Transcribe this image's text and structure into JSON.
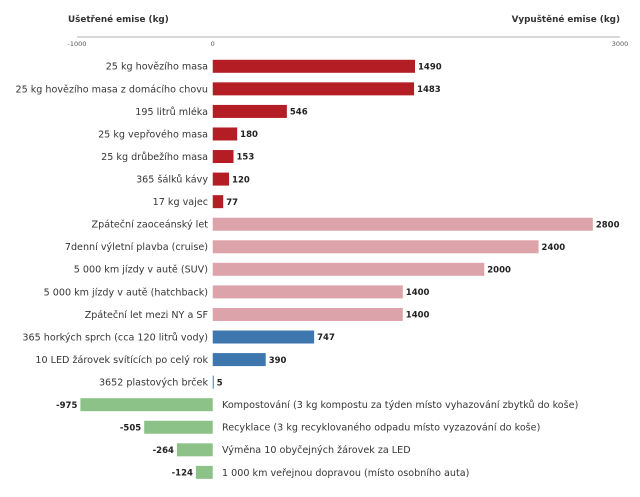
{
  "chart_data": {
    "type": "bar",
    "orientation": "horizontal",
    "xlabel_left": "Ušetřené emise (kg)",
    "xlabel_right": "Vypuštěné emise (kg)",
    "xlim": [
      -1000,
      3000
    ],
    "x_ticks": [
      -1000,
      0,
      3000
    ],
    "grid": false,
    "items": [
      {
        "label": "25 kg hovězího masa",
        "value": 1490,
        "color": "#b51d25"
      },
      {
        "label": "25 kg hovězího masa z domácího chovu",
        "value": 1483,
        "color": "#b51d25"
      },
      {
        "label": "195 litrů mléka",
        "value": 546,
        "color": "#b51d25"
      },
      {
        "label": "25 kg vepřového masa",
        "value": 180,
        "color": "#b51d25"
      },
      {
        "label": "25 kg drůbežího masa",
        "value": 153,
        "color": "#b51d25"
      },
      {
        "label": "365 šálků kávy",
        "value": 120,
        "color": "#b51d25"
      },
      {
        "label": "17 kg vajec",
        "value": 77,
        "color": "#b51d25"
      },
      {
        "label": "Zpáteční zaoceánský let",
        "value": 2800,
        "color": "#dca4aa"
      },
      {
        "label": "7denní výletní plavba (cruise)",
        "value": 2400,
        "color": "#dca4aa"
      },
      {
        "label": "5 000 km jízdy v autě (SUV)",
        "value": 2000,
        "color": "#dca4aa"
      },
      {
        "label": "5 000 km jízdy v autě (hatchback)",
        "value": 1400,
        "color": "#dca4aa"
      },
      {
        "label": "Zpáteční let mezi NY a SF",
        "value": 1400,
        "color": "#dca4aa"
      },
      {
        "label": "365 horkých sprch (cca 120 litrů vody)",
        "value": 747,
        "color": "#3d77ae"
      },
      {
        "label": "10 LED žárovek svítících po celý rok",
        "value": 390,
        "color": "#3d77ae"
      },
      {
        "label": "3652 plastových brček",
        "value": 5,
        "color": "#3d77ae"
      },
      {
        "label": "Kompostování (3 kg kompostu za týden místo vyhazování zbytků do koše)",
        "value": -975,
        "color": "#8cc287"
      },
      {
        "label": "Recyklace (3 kg recyklovaného odpadu místo vyzazování do koše)",
        "value": -505,
        "color": "#8cc287"
      },
      {
        "label": "Výměna 10 obyčejných žárovek za LED",
        "value": -264,
        "color": "#8cc287"
      },
      {
        "label": "1 000 km veřejnou dopravou (místo osobního auta)",
        "value": -124,
        "color": "#8cc287"
      }
    ]
  }
}
